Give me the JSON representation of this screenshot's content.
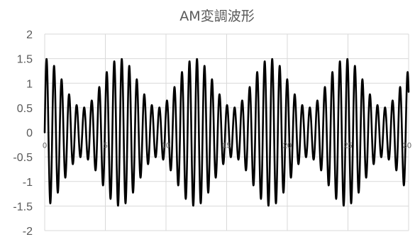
{
  "chart_data": {
    "type": "line",
    "title": "AM変調波形",
    "xlabel": "",
    "ylabel": "",
    "xlim": [
      0,
      30
    ],
    "ylim": [
      -2,
      2
    ],
    "x_ticks": [
      0,
      5,
      10,
      15,
      20,
      25,
      30
    ],
    "y_ticks": [
      2,
      1.5,
      1,
      0.5,
      0,
      -0.5,
      -1,
      -1.5,
      -2
    ],
    "y_tick_labels": [
      "2",
      "1.5",
      "1",
      "0.5",
      "0",
      "-0.5",
      "-1",
      "-1.5",
      "-2"
    ],
    "x_tick_labels": [
      "0",
      "5",
      "10",
      "15",
      "20",
      "25",
      "30"
    ],
    "grid": true,
    "legend": "none",
    "series": [
      {
        "color": "#000000",
        "formula": "(1 + 0.5*cos(2*pi*t/6.2)) * sin(2*pi*t/0.62)",
        "carrier_period": 0.62,
        "envelope_period": 6.2,
        "modulation_index": 0.5,
        "amplitude_max": 1.5,
        "amplitude_min": 0.5
      }
    ]
  }
}
